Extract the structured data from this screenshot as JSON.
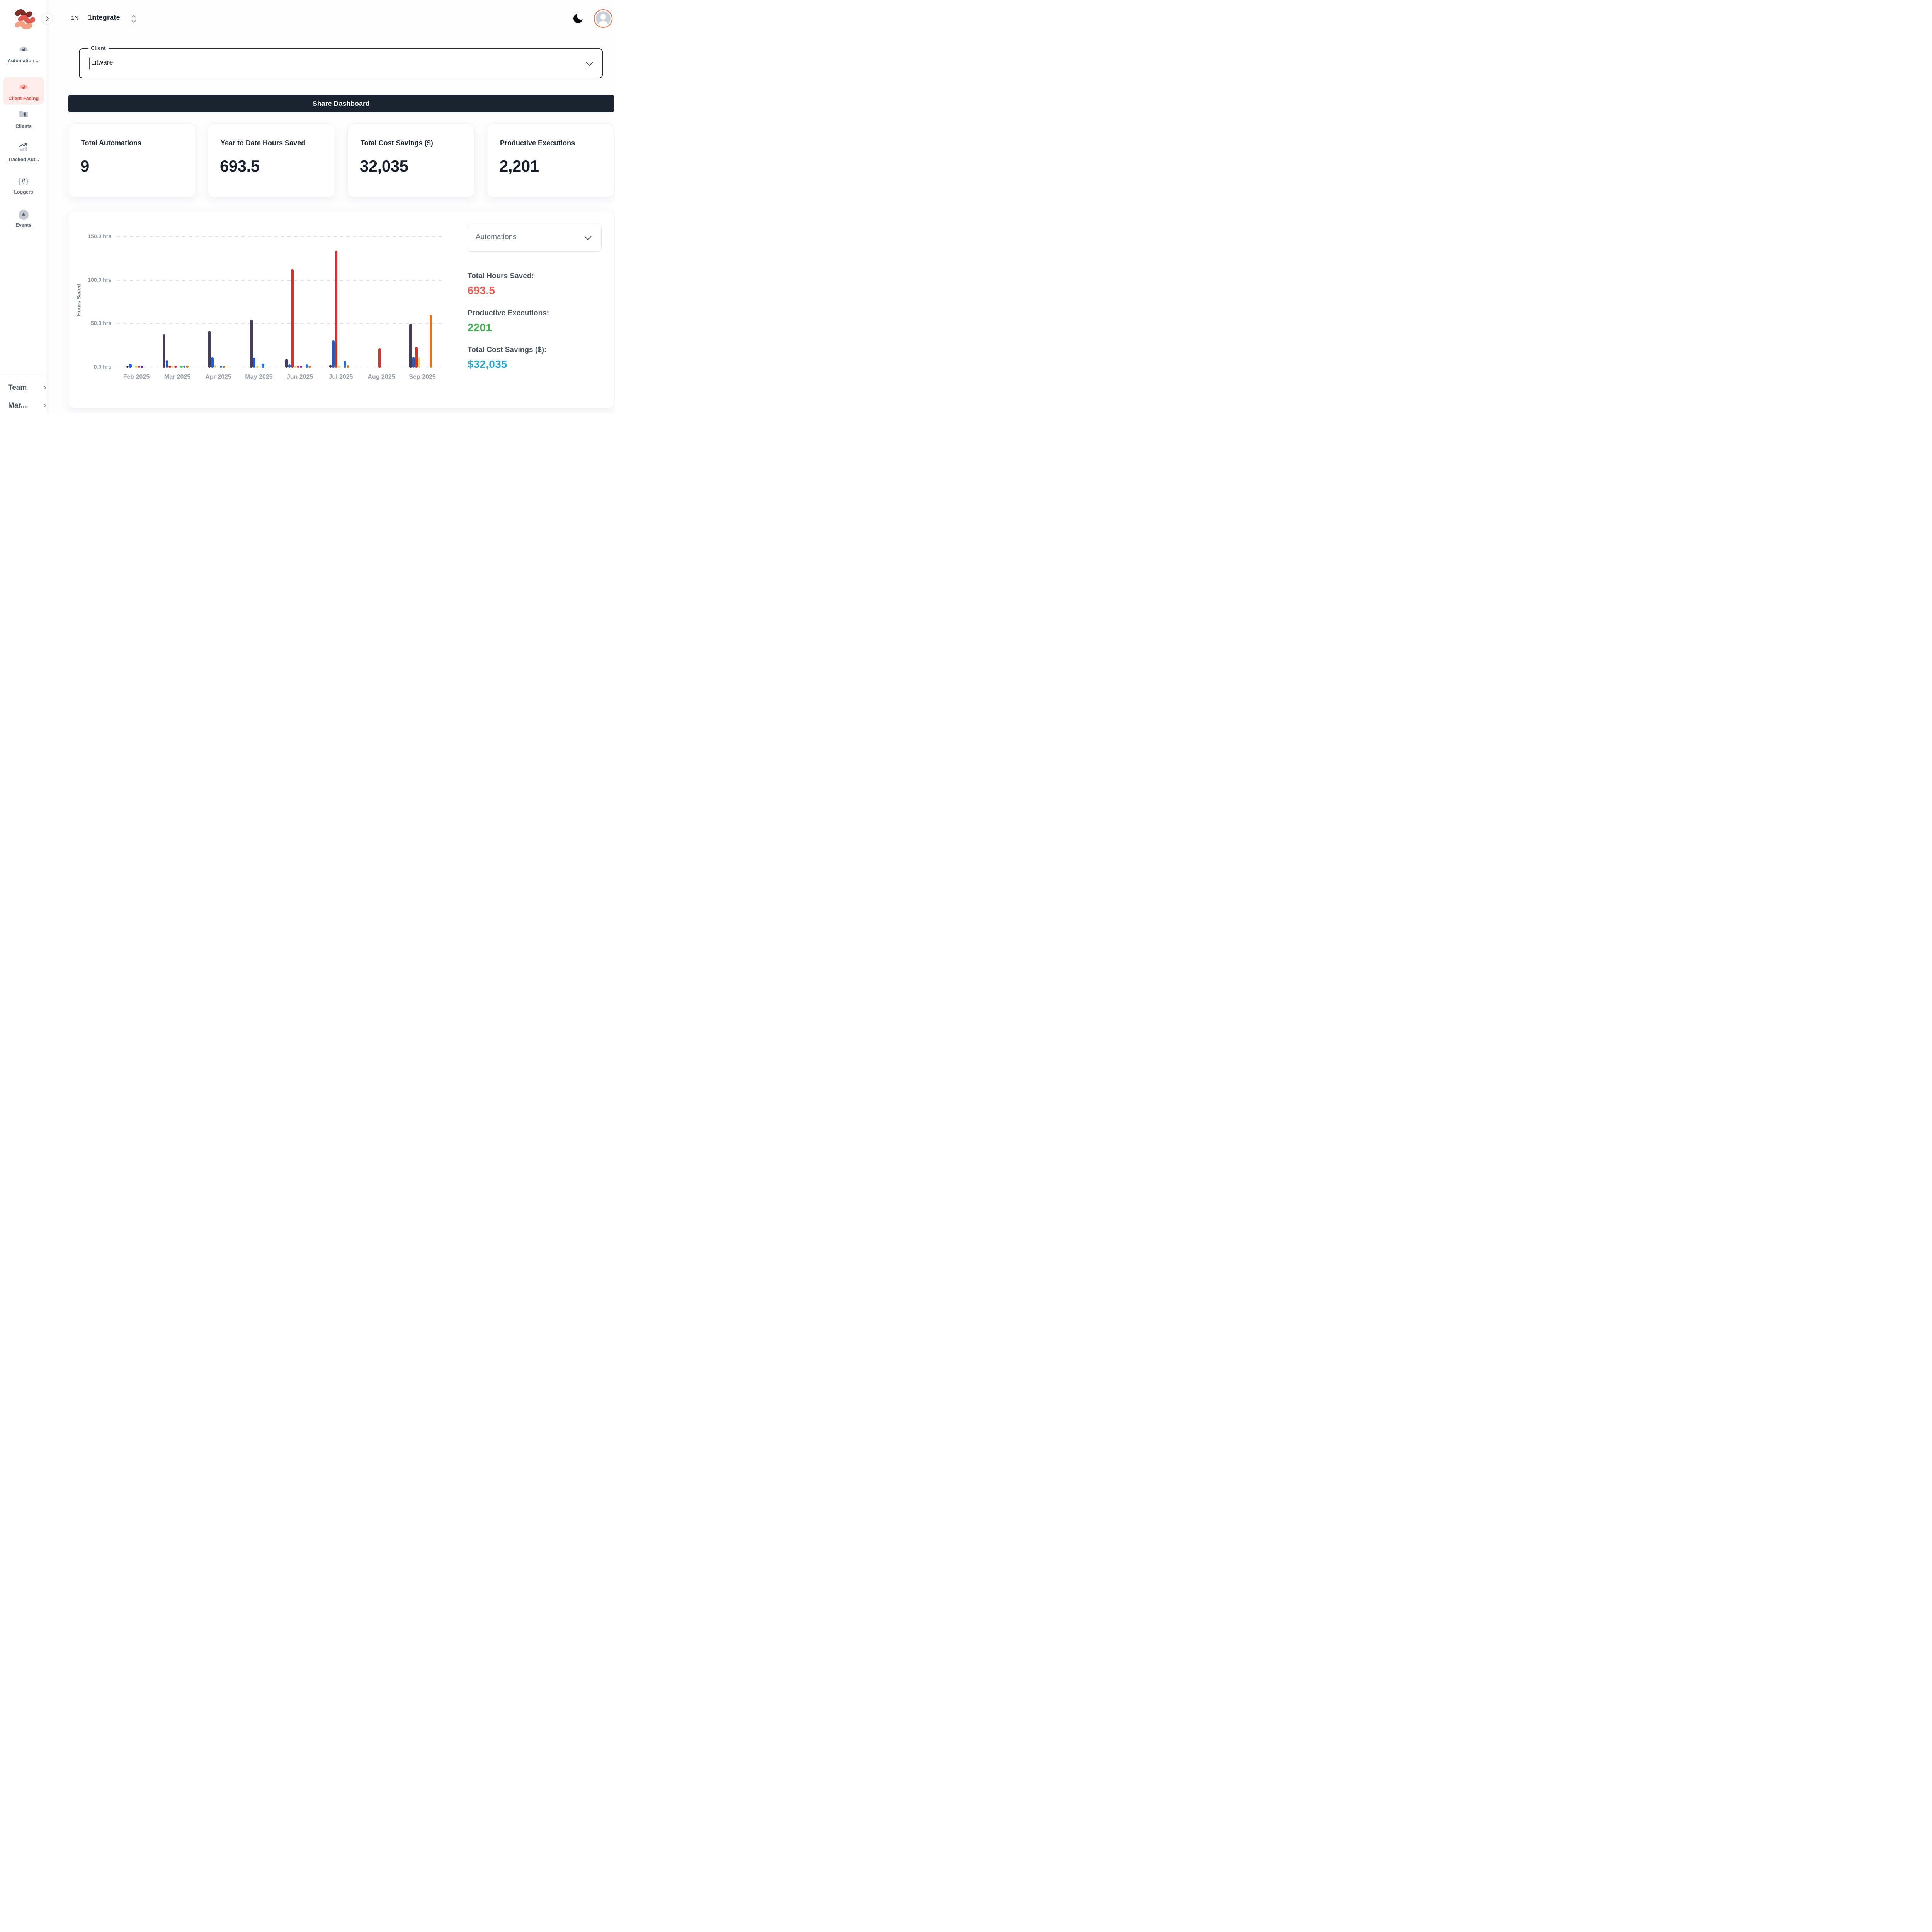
{
  "header": {
    "brand_code": "1N",
    "brand_name": "1ntegrate"
  },
  "sidebar": {
    "items": [
      {
        "label": "Automation ...",
        "icon": "gauge-icon",
        "active": false
      },
      {
        "label": "Client Facing",
        "icon": "gauge-icon",
        "active": true
      },
      {
        "label": "Clients",
        "icon": "folder-zip-icon",
        "active": false
      },
      {
        "label": "Tracked Aut...",
        "icon": "trending-bars-icon",
        "active": false
      },
      {
        "label": "Loggers",
        "icon": "braces-hash-icon",
        "active": false
      },
      {
        "label": "Events",
        "icon": "star-icon",
        "active": false
      }
    ],
    "bottom_items": [
      {
        "label": "Team",
        "chevron": "›"
      },
      {
        "label": "Mar...",
        "chevron": "›"
      }
    ]
  },
  "client_select": {
    "label": "Client",
    "value": "Litware"
  },
  "share_button": {
    "label": "Share Dashboard"
  },
  "stat_cards": [
    {
      "title": "Total Automations",
      "value": "9"
    },
    {
      "title": "Year to Date Hours Saved",
      "value": "693.5"
    },
    {
      "title": "Total Cost Savings ($)",
      "value": "32,035"
    },
    {
      "title": "Productive Executions",
      "value": "2,201"
    }
  ],
  "chart_panel": {
    "dropdown_value": "Automations",
    "totals": [
      {
        "label": "Total Hours Saved:",
        "value": "693.5",
        "color": "#f05a52"
      },
      {
        "label": "Productive Executions:",
        "value": "2201",
        "color": "#3fae4c"
      },
      {
        "label": "Total Cost Savings ($):",
        "value": "$32,035",
        "color": "#2aa6d5"
      }
    ]
  },
  "chart_data": {
    "type": "bar",
    "title": "",
    "xlabel": "",
    "ylabel": "Hours Saved",
    "unit": "hrs",
    "ylim": [
      0,
      150
    ],
    "grid": "horizontal-dashed",
    "legend_position": "none",
    "yticks": [
      {
        "v": 150,
        "label": "150.0 hrs"
      },
      {
        "v": 100,
        "label": "100.0 hrs"
      },
      {
        "v": 50,
        "label": "50.0 hrs"
      },
      {
        "v": 0,
        "label": "0.0 hrs"
      }
    ],
    "categories": [
      "Feb 2025",
      "Mar 2025",
      "Apr 2025",
      "May 2025",
      "Jun 2025",
      "Jul 2025",
      "Aug 2025",
      "Sep 2025"
    ],
    "palette": {
      "purple": "#453a5f",
      "blue": "#2158e0",
      "red": "#d0342c",
      "yellow": "#f3d469",
      "pink": "#e7347c",
      "violet": "#6b2cd9",
      "green": "#43dd3f",
      "azure": "#1d72e8",
      "orange": "#df731f"
    },
    "months": [
      {
        "label": "Feb 2025",
        "bars": [
          {
            "c": "purple",
            "v": 2.3
          },
          {
            "c": "blue",
            "v": 4.5
          },
          {
            "gap": true
          },
          {
            "c": "yellow",
            "v": 2.3
          },
          {
            "c": "pink",
            "v": 2.3
          },
          {
            "c": "violet",
            "v": 2.3
          }
        ]
      },
      {
        "label": "Mar 2025",
        "bars": [
          {
            "c": "purple",
            "v": 38.5
          },
          {
            "c": "blue",
            "v": 9
          },
          {
            "c": "red",
            "v": 2.3
          },
          {
            "c": "yellow",
            "v": 2.7
          },
          {
            "c": "pink",
            "v": 2.3
          },
          {
            "gap": true
          },
          {
            "c": "green",
            "v": 2.3
          },
          {
            "c": "azure",
            "v": 2.7
          },
          {
            "c": "orange",
            "v": 2.7
          }
        ]
      },
      {
        "label": "Apr 2025",
        "bars": [
          {
            "c": "purple",
            "v": 42.5
          },
          {
            "c": "blue",
            "v": 12
          },
          {
            "c": "yellow",
            "v": 3.5
          },
          {
            "gap": true
          },
          {
            "c": "azure",
            "v": 2.3
          },
          {
            "c": "orange",
            "v": 2.3
          }
        ]
      },
      {
        "label": "May 2025",
        "bars": [
          {
            "c": "purple",
            "v": 55.5
          },
          {
            "c": "blue",
            "v": 11.5
          },
          {
            "c": "yellow",
            "v": 2.3
          },
          {
            "gap": true
          },
          {
            "c": "azure",
            "v": 5
          }
        ]
      },
      {
        "label": "Jun 2025",
        "bars": [
          {
            "c": "purple",
            "v": 10
          },
          {
            "c": "blue",
            "v": 4
          },
          {
            "c": "red",
            "v": 113
          },
          {
            "c": "yellow",
            "v": 2
          },
          {
            "c": "pink",
            "v": 2
          },
          {
            "c": "violet",
            "v": 2
          },
          {
            "gap": true
          },
          {
            "c": "azure",
            "v": 4
          },
          {
            "c": "orange",
            "v": 2
          }
        ]
      },
      {
        "label": "Jul 2025",
        "bars": [
          {
            "c": "purple",
            "v": 3.5
          },
          {
            "c": "blue",
            "v": 31.5
          },
          {
            "c": "red",
            "v": 134.5
          },
          {
            "c": "yellow",
            "v": 2.5
          },
          {
            "gap": true
          },
          {
            "c": "azure",
            "v": 8
          },
          {
            "c": "orange",
            "v": 3
          }
        ]
      },
      {
        "label": "Aug 2025",
        "bars": [
          {
            "c": "red",
            "v": 22.5
          }
        ]
      },
      {
        "label": "Sep 2025",
        "bars": [
          {
            "c": "purple",
            "v": 50.5
          },
          {
            "c": "blue",
            "v": 12.5
          },
          {
            "c": "red",
            "v": 24
          },
          {
            "c": "yellow",
            "v": 12
          },
          {
            "gap": true
          },
          {
            "gap": true
          },
          {
            "gap": true
          },
          {
            "c": "orange",
            "v": 61
          }
        ]
      }
    ]
  }
}
